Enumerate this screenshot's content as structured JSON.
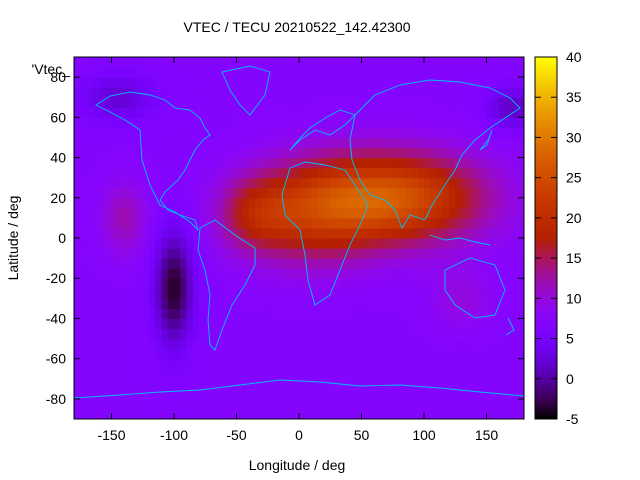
{
  "chart_data": {
    "type": "heatmap",
    "title": "VTEC / TECU 20210522_142.42300",
    "xlabel": "Longitude / deg",
    "ylabel": "Latitude / deg",
    "key_label": "'Vtec_",
    "xlim": [
      -180,
      180
    ],
    "ylim": [
      -90,
      90
    ],
    "xticks": [
      -150,
      -100,
      -50,
      0,
      50,
      100,
      150
    ],
    "yticks": [
      -80,
      -60,
      -40,
      -20,
      0,
      20,
      40,
      60,
      80
    ],
    "colorbar": {
      "range": [
        -5,
        40
      ],
      "ticks": [
        -5,
        0,
        5,
        10,
        15,
        20,
        25,
        30,
        35,
        40
      ]
    },
    "field": {
      "background": 7,
      "features": [
        {
          "lon": 75,
          "lat": 20,
          "amp": 19,
          "slon": 70,
          "slat": 22
        },
        {
          "lon": 10,
          "lat": 12,
          "amp": 10,
          "slon": 50,
          "slat": 25
        },
        {
          "lon": -35,
          "lat": 12,
          "amp": 8,
          "slon": 30,
          "slat": 18
        },
        {
          "lon": -100,
          "lat": -25,
          "amp": -11,
          "slon": 15,
          "slat": 28
        },
        {
          "lon": -140,
          "lat": 10,
          "amp": 5,
          "slon": 18,
          "slat": 18
        },
        {
          "lon": -145,
          "lat": 70,
          "amp": -5,
          "slon": 30,
          "slat": 12
        },
        {
          "lon": 170,
          "lat": 65,
          "amp": -6,
          "slon": 20,
          "slat": 10
        },
        {
          "lon": 130,
          "lat": -30,
          "amp": 3,
          "slon": 25,
          "slat": 15
        }
      ]
    }
  }
}
